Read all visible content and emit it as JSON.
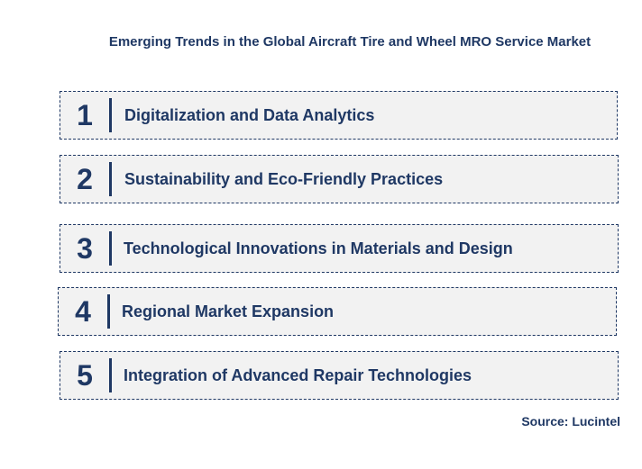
{
  "title": "Emerging Trends in the Global Aircraft Tire and Wheel MRO Service Market",
  "trends": [
    {
      "number": "1",
      "label": "Digitalization and Data Analytics"
    },
    {
      "number": "2",
      "label": "Sustainability and Eco-Friendly Practices"
    },
    {
      "number": "3",
      "label": "Technological Innovations in Materials and Design"
    },
    {
      "number": "4",
      "label": "Regional Market Expansion"
    },
    {
      "number": "5",
      "label": "Integration of Advanced Repair Technologies"
    }
  ],
  "source": "Source: Lucintel",
  "colors": {
    "text": "#1f3864",
    "box_fill": "#f2f2f2",
    "border": "#1f3864"
  }
}
